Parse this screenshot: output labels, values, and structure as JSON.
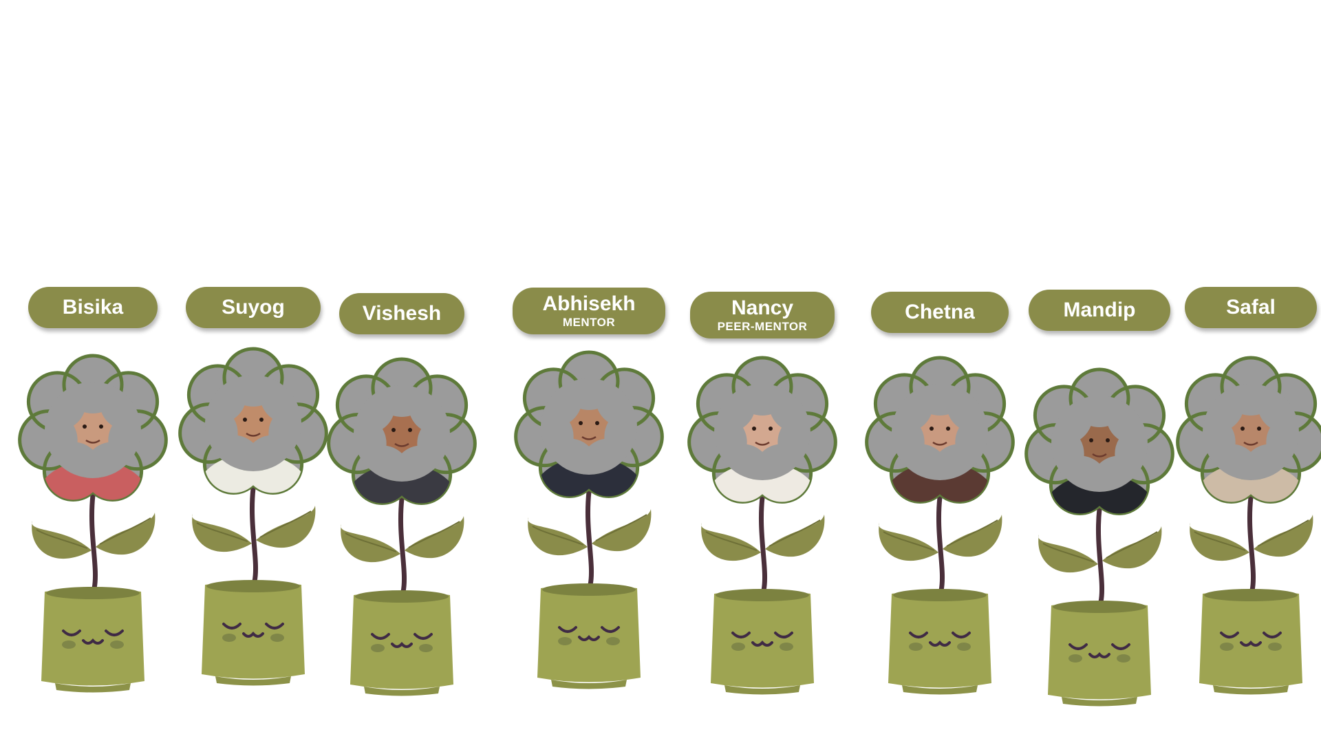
{
  "members": [
    {
      "name": "Bisika",
      "role": "",
      "skin": "#c99a7e",
      "hair": "#2e1d15",
      "shirt": "#c95f60"
    },
    {
      "name": "Suyog",
      "role": "",
      "skin": "#c08c6a",
      "hair": "#2f5ea8",
      "shirt": "#ecebe2"
    },
    {
      "name": "Vishesh",
      "role": "",
      "skin": "#a87050",
      "hair": "#1c1410",
      "shirt": "#3a3a42"
    },
    {
      "name": "Abhisekh",
      "role": "MENTOR",
      "skin": "#b88666",
      "hair": "#1d1612",
      "shirt": "#2c2f3b"
    },
    {
      "name": "Nancy",
      "role": "PEER-MENTOR",
      "skin": "#d3a890",
      "hair": "#2a1c16",
      "shirt": "#eeeae2"
    },
    {
      "name": "Chetna",
      "role": "",
      "skin": "#c99a80",
      "hair": "#1a1410",
      "shirt": "#5b3a33"
    },
    {
      "name": "Mandip",
      "role": "",
      "skin": "#9a6a4c",
      "hair": "#1a1512",
      "shirt": "#24262c"
    },
    {
      "name": "Safal",
      "role": "",
      "skin": "#b8876a",
      "hair": "#1b1410",
      "shirt": "#cdbba6"
    }
  ],
  "colors": {
    "pill": "#8a8c4a",
    "petal": "#9b9b9b",
    "petal_outline": "#5e7a3a",
    "leaf": "#8a8c4a",
    "stem": "#4a2f3a",
    "pot": "#9ea452",
    "face": "#3f2a45",
    "blush": "#7f8648"
  }
}
